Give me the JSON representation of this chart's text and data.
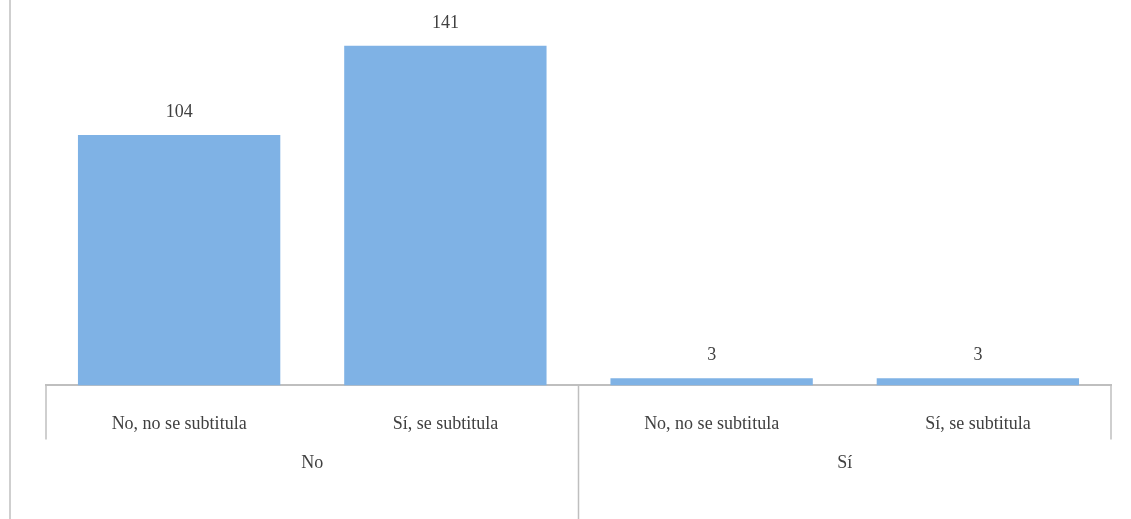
{
  "chart_data": {
    "type": "bar",
    "categories": [
      "No, no se subtitula",
      "Sí, se subtitula",
      "No, no se subtitula",
      "Sí, se subtitula"
    ],
    "values": [
      104,
      141,
      3,
      3
    ],
    "color": "#7fb2e5",
    "relative": false,
    "data_labels": true,
    "grid": false,
    "legend": false,
    "annotations": [
      "No",
      "Sí"
    ]
  }
}
